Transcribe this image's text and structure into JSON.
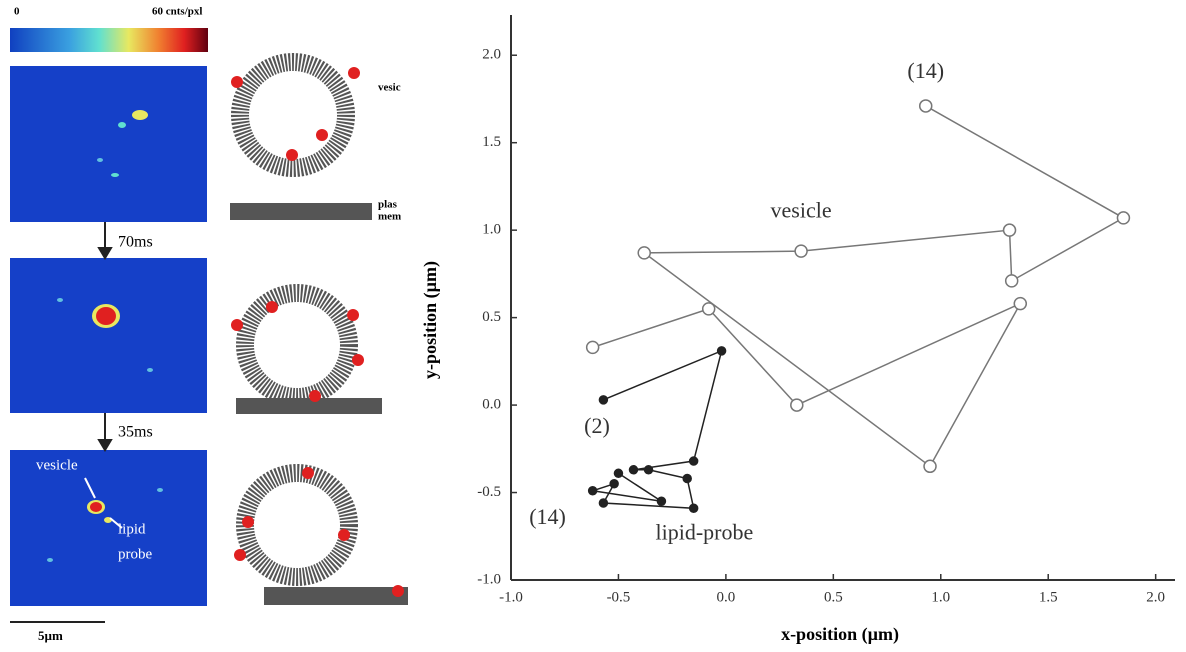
{
  "chart_data": {
    "type": "line",
    "xlabel": "x-position (µm)",
    "ylabel": "y-position (µm)",
    "xlim": [
      -1.0,
      2.09
    ],
    "ylim": [
      -1.0,
      2.23
    ],
    "xticks": [
      {
        "value": -1.0,
        "label": "-1.0"
      },
      {
        "value": -0.5,
        "label": "-0.5"
      },
      {
        "value": 0.0,
        "label": "0.0"
      },
      {
        "value": 0.5,
        "label": "0.5"
      },
      {
        "value": 1.0,
        "label": "1.0"
      },
      {
        "value": 1.5,
        "label": "1.5"
      },
      {
        "value": 2.0,
        "label": "2.0"
      }
    ],
    "yticks": [
      {
        "value": -1.0,
        "label": "-1.0"
      },
      {
        "value": -0.5,
        "label": "-0.5"
      },
      {
        "value": 0.0,
        "label": "0.0"
      },
      {
        "value": 0.5,
        "label": "0.5"
      },
      {
        "value": 1.0,
        "label": "1.0"
      },
      {
        "value": 1.5,
        "label": "1.5"
      },
      {
        "value": 2.0,
        "label": "2.0"
      }
    ],
    "series": [
      {
        "color": "#777777",
        "marker": "open",
        "x": [
          -0.62,
          -0.08,
          0.33,
          1.37,
          0.95,
          -0.38,
          0.35,
          1.32,
          1.33,
          1.85,
          0.93
        ],
        "y": [
          0.33,
          0.55,
          0.0,
          0.58,
          -0.35,
          0.87,
          0.88,
          1.0,
          0.71,
          1.07,
          1.71
        ]
      },
      {
        "color": "#222222",
        "marker": "filled",
        "x": [
          -0.57,
          -0.02,
          -0.15,
          -0.43,
          -0.36,
          -0.18,
          -0.15,
          -0.57,
          -0.52,
          -0.62,
          -0.3,
          -0.5
        ],
        "y": [
          0.03,
          0.31,
          -0.32,
          -0.37,
          -0.37,
          -0.42,
          -0.59,
          -0.56,
          -0.45,
          -0.49,
          -0.55,
          -0.39
        ]
      }
    ],
    "annotations": [
      {
        "text": "(14)",
        "x": 0.93,
        "y": 1.9
      },
      {
        "text": "vesicle",
        "x": 0.35,
        "y": 1.1
      },
      {
        "text": "(2)",
        "x": -0.6,
        "y": -0.13
      },
      {
        "text": "(14)",
        "x": -0.83,
        "y": -0.65
      },
      {
        "text": "lipid-probe",
        "x": -0.1,
        "y": -0.74
      }
    ]
  },
  "figure": {
    "scale_min": "0",
    "scale_max": "60 cnts/pxl",
    "step1": "70ms",
    "step2": "35ms",
    "vesicle_label": "vesicle",
    "probe_label_1": "lipid",
    "probe_label_2": "probe",
    "scale_bar": "5µm",
    "diagram_vesicle": "vesic",
    "diagram_membrane_1": "plas",
    "diagram_membrane_2": "mem"
  }
}
